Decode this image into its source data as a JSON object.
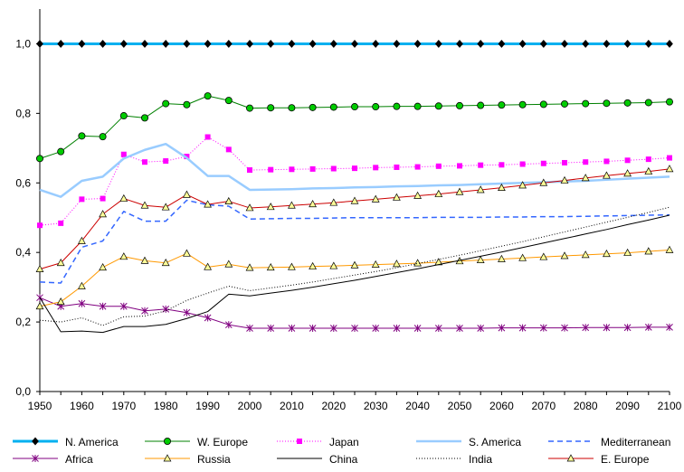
{
  "chart_data": {
    "type": "line",
    "title": "",
    "xlabel": "",
    "ylabel": "",
    "x": [
      1950,
      1955,
      1960,
      1965,
      1970,
      1975,
      1980,
      1985,
      1990,
      1995,
      2000,
      2005,
      2010,
      2015,
      2020,
      2025,
      2030,
      2035,
      2040,
      2045,
      2050,
      2055,
      2060,
      2065,
      2070,
      2075,
      2080,
      2085,
      2090,
      2095,
      2100
    ],
    "xticks": [
      "1950",
      "1960",
      "1970",
      "1980",
      "1990",
      "2000",
      "2010",
      "2020",
      "2030",
      "2040",
      "2050",
      "2060",
      "2070",
      "2080",
      "2090",
      "2100"
    ],
    "xlim": [
      1950,
      2100
    ],
    "ylim": [
      0,
      1.1
    ],
    "yticks": [
      "0,0",
      "0,2",
      "0,4",
      "0,6",
      "0,8",
      "1,0"
    ],
    "grid": false,
    "legend": "bottom",
    "series": [
      {
        "name": "N. America",
        "color": "#00B0F0",
        "marker": "diamond",
        "values": [
          1,
          1,
          1,
          1,
          1,
          1,
          1,
          1,
          1,
          1,
          1,
          1,
          1,
          1,
          1,
          1,
          1,
          1,
          1,
          1,
          1,
          1,
          1,
          1,
          1,
          1,
          1,
          1,
          1,
          1,
          1
        ]
      },
      {
        "name": "W. Europe",
        "color": "#008000",
        "marker": "circle",
        "values": [
          0.67,
          0.69,
          0.735,
          0.733,
          0.793,
          0.787,
          0.828,
          0.825,
          0.85,
          0.837,
          0.815,
          0.816,
          0.816,
          0.817,
          0.818,
          0.819,
          0.819,
          0.82,
          0.82,
          0.821,
          0.822,
          0.823,
          0.824,
          0.825,
          0.826,
          0.827,
          0.828,
          0.829,
          0.83,
          0.831,
          0.833
        ]
      },
      {
        "name": "Japan",
        "color": "#FF00FF",
        "marker": "square",
        "values": [
          0.478,
          0.484,
          0.553,
          0.555,
          0.682,
          0.66,
          0.663,
          0.676,
          0.732,
          0.696,
          0.637,
          0.638,
          0.639,
          0.64,
          0.641,
          0.642,
          0.644,
          0.645,
          0.646,
          0.648,
          0.649,
          0.651,
          0.652,
          0.654,
          0.656,
          0.658,
          0.66,
          0.662,
          0.665,
          0.668,
          0.672
        ]
      },
      {
        "name": "S. America",
        "color": "#99CCFF",
        "marker": "none",
        "values": [
          0.58,
          0.56,
          0.606,
          0.618,
          0.67,
          0.695,
          0.712,
          0.672,
          0.62,
          0.62,
          0.58,
          0.581,
          0.582,
          0.584,
          0.585,
          0.587,
          0.588,
          0.59,
          0.591,
          0.593,
          0.594,
          0.596,
          0.598,
          0.6,
          0.602,
          0.604,
          0.606,
          0.609,
          0.612,
          0.615,
          0.618
        ]
      },
      {
        "name": "Mediterranean",
        "color": "#3366FF",
        "marker": "none",
        "values": [
          0.315,
          0.312,
          0.415,
          0.433,
          0.518,
          0.49,
          0.49,
          0.55,
          0.537,
          0.533,
          0.496,
          0.497,
          0.498,
          0.498,
          0.499,
          0.5,
          0.5,
          0.5,
          0.5,
          0.501,
          0.501,
          0.501,
          0.502,
          0.502,
          0.503,
          0.503,
          0.504,
          0.505,
          0.506,
          0.507,
          0.508
        ]
      },
      {
        "name": "Africa",
        "color": "#800080",
        "marker": "star",
        "values": [
          0.27,
          0.245,
          0.253,
          0.245,
          0.245,
          0.232,
          0.237,
          0.227,
          0.212,
          0.192,
          0.182,
          0.182,
          0.182,
          0.182,
          0.182,
          0.182,
          0.182,
          0.182,
          0.182,
          0.182,
          0.182,
          0.182,
          0.183,
          0.183,
          0.183,
          0.183,
          0.184,
          0.184,
          0.184,
          0.185,
          0.185
        ]
      },
      {
        "name": "Russia",
        "color": "#FF9900",
        "marker": "triangle",
        "values": [
          0.245,
          0.258,
          0.303,
          0.357,
          0.388,
          0.376,
          0.37,
          0.397,
          0.358,
          0.366,
          0.356,
          0.357,
          0.358,
          0.36,
          0.361,
          0.363,
          0.365,
          0.367,
          0.369,
          0.372,
          0.375,
          0.378,
          0.381,
          0.384,
          0.387,
          0.39,
          0.393,
          0.396,
          0.399,
          0.403,
          0.407
        ]
      },
      {
        "name": "China",
        "color": "#000000",
        "marker": "none",
        "values": [
          0.27,
          0.172,
          0.174,
          0.17,
          0.187,
          0.187,
          0.193,
          0.21,
          0.23,
          0.28,
          0.275,
          0.283,
          0.291,
          0.3,
          0.31,
          0.32,
          0.331,
          0.342,
          0.353,
          0.365,
          0.377,
          0.389,
          0.401,
          0.414,
          0.427,
          0.44,
          0.453,
          0.466,
          0.48,
          0.493,
          0.507
        ]
      },
      {
        "name": "India",
        "color": "#000000",
        "marker": "none",
        "values": [
          0.205,
          0.2,
          0.212,
          0.19,
          0.215,
          0.217,
          0.232,
          0.262,
          0.283,
          0.303,
          0.29,
          0.298,
          0.306,
          0.315,
          0.325,
          0.335,
          0.345,
          0.356,
          0.368,
          0.38,
          0.392,
          0.405,
          0.418,
          0.431,
          0.445,
          0.459,
          0.473,
          0.487,
          0.501,
          0.515,
          0.53
        ]
      },
      {
        "name": "E. Europe",
        "color": "#CC0000",
        "marker": "triangle",
        "values": [
          0.352,
          0.37,
          0.433,
          0.51,
          0.555,
          0.535,
          0.53,
          0.566,
          0.538,
          0.547,
          0.528,
          0.531,
          0.535,
          0.539,
          0.543,
          0.548,
          0.553,
          0.558,
          0.563,
          0.568,
          0.574,
          0.58,
          0.586,
          0.593,
          0.6,
          0.607,
          0.614,
          0.621,
          0.627,
          0.633,
          0.64
        ]
      }
    ]
  }
}
